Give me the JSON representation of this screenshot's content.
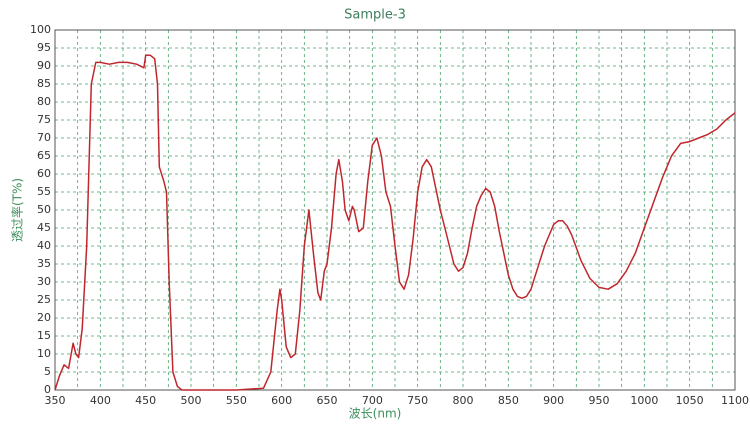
{
  "chart_data": {
    "type": "line",
    "title": "Sample-3",
    "x_label": "波长(nm)",
    "y_label": "透过率(T%)",
    "x": [
      350,
      355,
      360,
      365,
      370,
      373,
      376,
      380,
      385,
      390,
      395,
      400,
      410,
      420,
      430,
      440,
      448,
      450,
      455,
      460,
      463,
      465,
      470,
      473,
      476,
      480,
      485,
      490,
      500,
      550,
      580,
      588,
      595,
      598,
      600,
      605,
      610,
      615,
      620,
      625,
      630,
      635,
      640,
      643,
      647,
      650,
      655,
      660,
      663,
      667,
      670,
      674,
      678,
      680,
      685,
      690,
      695,
      700,
      705,
      710,
      715,
      720,
      725,
      730,
      735,
      740,
      745,
      750,
      755,
      760,
      765,
      770,
      775,
      780,
      785,
      790,
      795,
      800,
      805,
      810,
      815,
      820,
      825,
      830,
      835,
      840,
      845,
      850,
      855,
      860,
      865,
      870,
      875,
      880,
      890,
      900,
      905,
      910,
      915,
      920,
      930,
      940,
      950,
      960,
      970,
      980,
      990,
      1000,
      1010,
      1020,
      1030,
      1040,
      1050,
      1060,
      1070,
      1080,
      1090,
      1100
    ],
    "series": [
      {
        "name": "Sample-3",
        "color": "#c0272d",
        "values": [
          0,
          4,
          7,
          6,
          13,
          10,
          9,
          17,
          40,
          85,
          91,
          91,
          90.5,
          91,
          91,
          90.5,
          89.5,
          93,
          93,
          92,
          85,
          62,
          58,
          55,
          30,
          5,
          1,
          0,
          0,
          0,
          0.5,
          5,
          22,
          28,
          25,
          12,
          9,
          10,
          22,
          40,
          50,
          38,
          27,
          25,
          33,
          35,
          45,
          60,
          64,
          58,
          50,
          47,
          51,
          50,
          44,
          45,
          58,
          68,
          70,
          65,
          55,
          51,
          40,
          30,
          28,
          32,
          42,
          55,
          62,
          64,
          62,
          56,
          50,
          45,
          40,
          35,
          33,
          34,
          38,
          45,
          51,
          54,
          56,
          55,
          51,
          44,
          38,
          32,
          28,
          26,
          25.5,
          26,
          28,
          32,
          40,
          46,
          47,
          47,
          45.5,
          43,
          36,
          31,
          28.5,
          28,
          29.5,
          33,
          38,
          45,
          52,
          59,
          65,
          68.5,
          69,
          70,
          71,
          72.5,
          75,
          77
        ]
      }
    ],
    "xlim": [
      350,
      1100
    ],
    "xticks": [
      350,
      400,
      450,
      500,
      550,
      600,
      650,
      700,
      750,
      800,
      850,
      900,
      950,
      1000,
      1050,
      1100
    ],
    "ylim": [
      0,
      100
    ],
    "yticks": [
      0,
      5,
      10,
      15,
      20,
      25,
      30,
      35,
      40,
      45,
      50,
      55,
      60,
      65,
      70,
      75,
      80,
      85,
      90,
      95,
      100
    ],
    "grid": true
  }
}
